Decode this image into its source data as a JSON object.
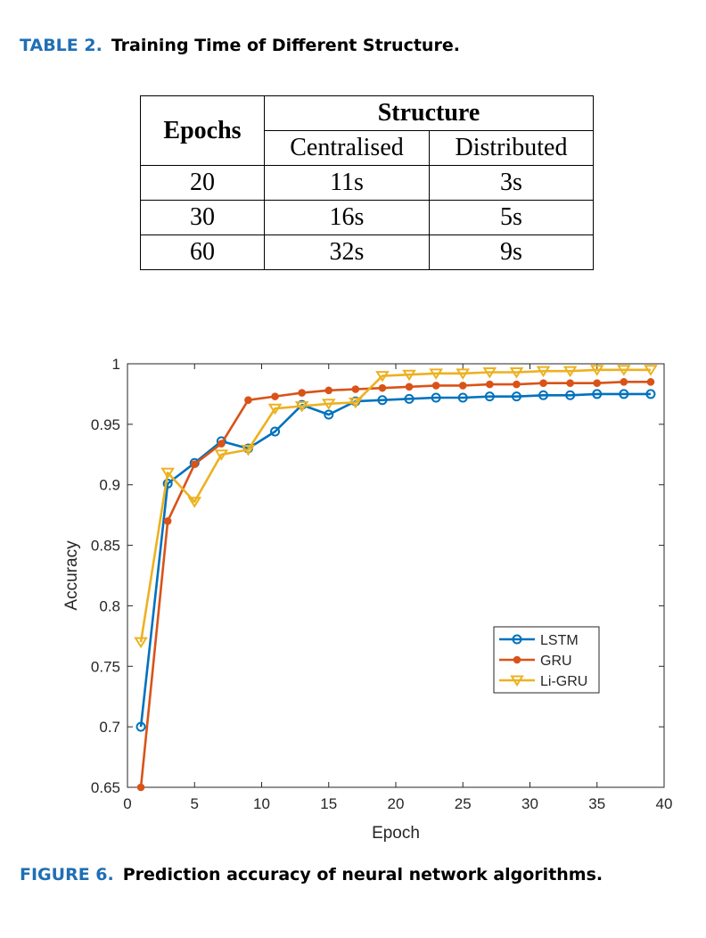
{
  "table": {
    "caption_label": "TABLE 2.",
    "caption_text": "Training Time of Different Structure.",
    "header": {
      "epochs": "Epochs",
      "structure": "Structure",
      "centralised": "Centralised",
      "distributed": "Distributed"
    },
    "rows": [
      {
        "epochs": "20",
        "centralised": "11s",
        "distributed": "3s"
      },
      {
        "epochs": "30",
        "centralised": "16s",
        "distributed": "5s"
      },
      {
        "epochs": "60",
        "centralised": "32s",
        "distributed": "9s"
      }
    ]
  },
  "figure": {
    "caption_label": "FIGURE 6.",
    "caption_text": "Prediction accuracy of neural network algorithms."
  },
  "chart_data": {
    "type": "line",
    "xlabel": "Epoch",
    "ylabel": "Accuracy",
    "xlim": [
      0,
      40
    ],
    "ylim": [
      0.65,
      1
    ],
    "xticks": [
      0,
      5,
      10,
      15,
      20,
      25,
      30,
      35,
      40
    ],
    "yticks": [
      0.65,
      0.7,
      0.75,
      0.8,
      0.85,
      0.9,
      0.95,
      1
    ],
    "ytick_labels": [
      "0.65",
      "0.7",
      "0.75",
      "0.8",
      "0.85",
      "0.9",
      "0.95",
      "1"
    ],
    "grid": false,
    "legend_position": "bottom-right",
    "x": [
      1,
      3,
      5,
      7,
      9,
      11,
      13,
      15,
      17,
      19,
      21,
      23,
      25,
      27,
      29,
      31,
      33,
      35,
      37,
      39
    ],
    "series": [
      {
        "name": "LSTM",
        "color": "#0072BD",
        "marker": "circle",
        "values": [
          0.7,
          0.901,
          0.918,
          0.936,
          0.93,
          0.944,
          0.966,
          0.958,
          0.969,
          0.97,
          0.971,
          0.972,
          0.972,
          0.973,
          0.973,
          0.974,
          0.974,
          0.975,
          0.975,
          0.975
        ]
      },
      {
        "name": "GRU",
        "color": "#D95319",
        "marker": "dot",
        "values": [
          0.65,
          0.87,
          0.917,
          0.934,
          0.97,
          0.973,
          0.976,
          0.978,
          0.979,
          0.98,
          0.981,
          0.982,
          0.982,
          0.983,
          0.983,
          0.984,
          0.984,
          0.984,
          0.985,
          0.985
        ]
      },
      {
        "name": "Li-GRU",
        "color": "#EDB120",
        "marker": "triangle-down",
        "values": [
          0.77,
          0.91,
          0.886,
          0.925,
          0.929,
          0.963,
          0.965,
          0.967,
          0.968,
          0.99,
          0.991,
          0.992,
          0.992,
          0.993,
          0.993,
          0.994,
          0.994,
          0.995,
          0.995,
          0.995
        ]
      }
    ]
  }
}
